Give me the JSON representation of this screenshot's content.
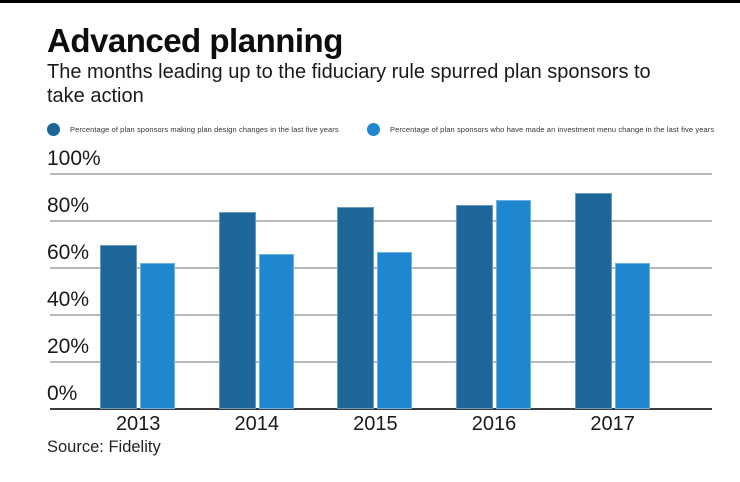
{
  "header": {
    "title": "Advanced planning",
    "subtitle": "The months leading up to the fiduciary rule spurred plan sponsors to take action"
  },
  "footer": {
    "source": "Source: Fidelity"
  },
  "colors": {
    "series1": "#1d6699",
    "series2": "#1e87d0",
    "gridline": "#b8b8b8",
    "baseline": "#3c3c3c"
  },
  "chart_data": {
    "type": "bar",
    "categories": [
      "2013",
      "2014",
      "2015",
      "2016",
      "2017"
    ],
    "series": [
      {
        "name": "Percentage of plan sponsors making plan design changes in the last five years",
        "color": "#1d6699",
        "values": [
          70,
          84,
          86,
          87,
          92
        ]
      },
      {
        "name": "Percentage of plan sponsors who have made an investment menu change in the last five years",
        "color": "#1e87d0",
        "values": [
          62,
          66,
          67,
          89,
          62
        ]
      }
    ],
    "title": "Advanced planning",
    "xlabel": "",
    "ylabel": "",
    "ylim": [
      0,
      100
    ],
    "yticks": [
      "0%",
      "20%",
      "40%",
      "60%",
      "80%",
      "100%"
    ],
    "grid": true,
    "legend_position": "top"
  }
}
